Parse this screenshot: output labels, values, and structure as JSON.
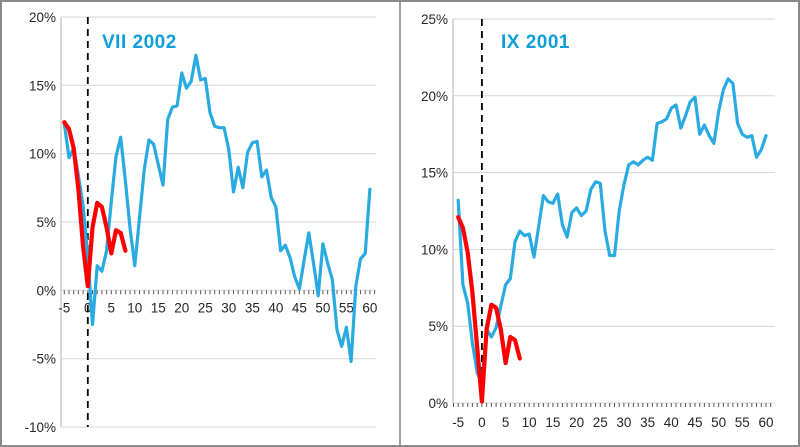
{
  "page": {
    "background": "#FFFFFF"
  },
  "styles": {
    "frame_color": "#8A8A8A",
    "divider_color": "#A0A0A0",
    "title_color": "#0D9FDA",
    "axis_text_color": "#262626",
    "grid_color": "#D6D6D6",
    "axis_line_color": "#C0C0C0",
    "tick_color": "#595959",
    "dashed_line_color": "#000000",
    "blue_line_color": "#29ABE2",
    "red_line_color": "#FF0000"
  },
  "chart_data": [
    {
      "type": "line",
      "title": "VII 2002",
      "xlim": [
        -5.7,
        61.3
      ],
      "ylim": [
        -10,
        20
      ],
      "xticks": [
        -5,
        0,
        5,
        10,
        15,
        20,
        25,
        30,
        35,
        40,
        45,
        50,
        55,
        60
      ],
      "xtick_labels": [
        "-5",
        "0",
        "5",
        "10",
        "15",
        "20",
        "25",
        "30",
        "35",
        "40",
        "45",
        "50",
        "55",
        "60"
      ],
      "ytick_values": [
        20,
        15,
        10,
        5,
        0,
        -5,
        -10
      ],
      "ytick_labels": [
        "20%",
        "15%",
        "10%",
        "5%",
        "0%",
        "-5%",
        "-10%"
      ],
      "x_axis_at_y": 0,
      "minor_tick_step": 1,
      "dashed_vline_x": 0,
      "grid": true,
      "legend": "none",
      "series": [
        {
          "id": "blue-past-crisis-path",
          "color": "#29ABE2",
          "width": 3.2,
          "x": [
            -5,
            -4,
            -3,
            -2,
            -1,
            0,
            1,
            2,
            3,
            4,
            5,
            6,
            7,
            8,
            9,
            10,
            11,
            12,
            13,
            14,
            15,
            16,
            17,
            18,
            19,
            20,
            21,
            22,
            23,
            24,
            25,
            26,
            27,
            28,
            29,
            30,
            31,
            32,
            33,
            34,
            35,
            36,
            37,
            38,
            39,
            40,
            41,
            42,
            43,
            44,
            45,
            46,
            47,
            48,
            49,
            50,
            51,
            52,
            53,
            54,
            55,
            56,
            57,
            58,
            59,
            60
          ],
          "y": [
            12.2,
            9.7,
            10.4,
            8.4,
            6.2,
            2.5,
            -2.5,
            1.8,
            1.4,
            2.9,
            6.5,
            9.8,
            11.2,
            8.0,
            4.5,
            1.8,
            5.3,
            8.8,
            11.0,
            10.7,
            9.2,
            7.7,
            12.5,
            13.4,
            13.5,
            15.9,
            14.8,
            15.3,
            17.2,
            15.4,
            15.5,
            13.0,
            12.0,
            11.9,
            11.9,
            10.3,
            7.2,
            9.0,
            7.5,
            10.1,
            10.8,
            10.9,
            8.3,
            8.8,
            6.8,
            6.1,
            2.9,
            3.3,
            2.4,
            1.0,
            0.1,
            2.2,
            4.2,
            2.0,
            -0.4,
            3.4,
            2.0,
            0.8,
            -2.9,
            -4.1,
            -2.7,
            -5.2,
            0.3,
            2.3,
            2.7,
            7.4
          ]
        },
        {
          "id": "red-current-crisis-path",
          "color": "#FF0000",
          "width": 4.2,
          "x": [
            -5,
            -4,
            -3,
            -2,
            -1,
            0,
            1,
            2,
            3,
            4,
            5,
            6,
            7,
            8
          ],
          "y": [
            12.3,
            11.8,
            10.4,
            7.4,
            3.2,
            0.3,
            4.6,
            6.4,
            6.1,
            4.6,
            2.7,
            4.4,
            4.2,
            2.9
          ]
        }
      ]
    },
    {
      "type": "line",
      "title": "IX 2001",
      "xlim": [
        -6.1,
        61.9
      ],
      "ylim": [
        0,
        25
      ],
      "xticks": [
        -5,
        0,
        5,
        10,
        15,
        20,
        25,
        30,
        35,
        40,
        45,
        50,
        55,
        60
      ],
      "xtick_labels": [
        "-5",
        "0",
        "5",
        "10",
        "15",
        "20",
        "25",
        "30",
        "35",
        "40",
        "45",
        "50",
        "55",
        "60"
      ],
      "ytick_values": [
        25,
        20,
        15,
        10,
        5,
        0
      ],
      "ytick_labels": [
        "25%",
        "20%",
        "15%",
        "10%",
        "5%",
        "0%"
      ],
      "x_axis_at_y": 0,
      "minor_tick_step": 1,
      "dashed_vline_x": 0,
      "grid": true,
      "legend": "none",
      "series": [
        {
          "id": "blue-past-crisis-path",
          "color": "#29ABE2",
          "width": 3.2,
          "x": [
            -5,
            -4,
            -3,
            -2,
            -1,
            0,
            1,
            2,
            3,
            4,
            5,
            6,
            7,
            8,
            9,
            10,
            11,
            12,
            13,
            14,
            15,
            16,
            17,
            18,
            19,
            20,
            21,
            22,
            23,
            24,
            25,
            26,
            27,
            28,
            29,
            30,
            31,
            32,
            33,
            34,
            35,
            36,
            37,
            38,
            39,
            40,
            41,
            42,
            43,
            44,
            45,
            46,
            47,
            48,
            49,
            50,
            51,
            52,
            53,
            54,
            55,
            56,
            57,
            58,
            59,
            60
          ],
          "y": [
            13.2,
            7.7,
            6.5,
            3.9,
            2.0,
            1.2,
            4.8,
            4.3,
            4.9,
            6.3,
            7.7,
            8.1,
            10.5,
            11.2,
            10.9,
            11.0,
            9.5,
            11.5,
            13.5,
            13.1,
            13.0,
            13.6,
            11.6,
            10.8,
            12.4,
            12.7,
            12.2,
            12.5,
            13.9,
            14.4,
            14.3,
            11.2,
            9.6,
            9.6,
            12.5,
            14.2,
            15.5,
            15.7,
            15.5,
            15.8,
            16.0,
            15.8,
            18.2,
            18.3,
            18.5,
            19.2,
            19.4,
            17.9,
            18.7,
            19.6,
            19.9,
            17.5,
            18.1,
            17.4,
            16.9,
            19.0,
            20.4,
            21.1,
            20.8,
            18.2,
            17.5,
            17.3,
            17.4,
            16.0,
            16.5,
            17.4
          ]
        },
        {
          "id": "red-current-crisis-path",
          "color": "#FF0000",
          "width": 4.2,
          "x": [
            -5,
            -4,
            -3,
            -2,
            -1,
            0,
            1,
            2,
            3,
            4,
            5,
            6,
            7,
            8
          ],
          "y": [
            12.1,
            11.4,
            9.8,
            7.2,
            3.6,
            0.1,
            4.8,
            6.4,
            6.2,
            4.8,
            2.6,
            4.3,
            4.1,
            2.9
          ]
        }
      ]
    }
  ]
}
